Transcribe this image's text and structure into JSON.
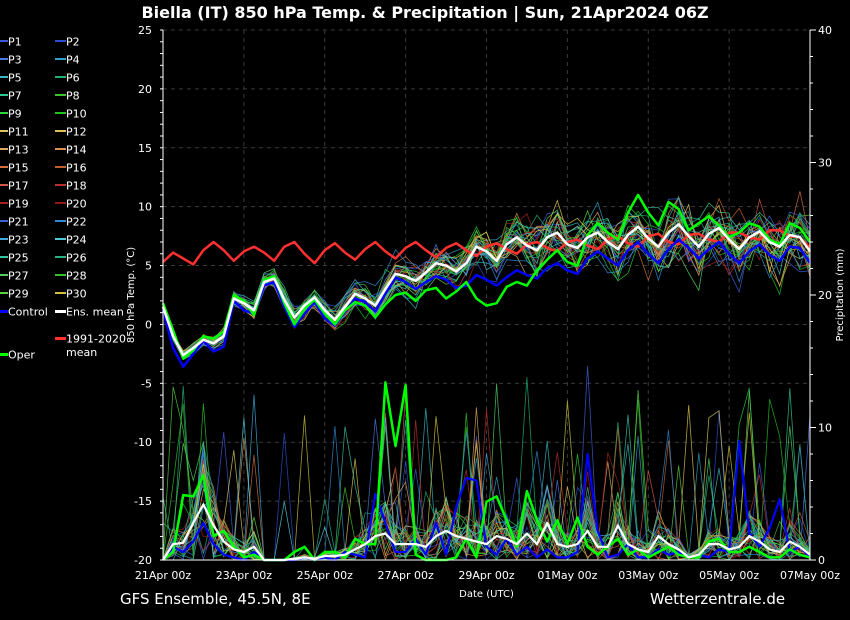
{
  "header": {
    "title": "Biella  (IT)  850 hPa Temp. & Precipitation | Sun, 21Apr2024 06Z"
  },
  "footer": {
    "left": "GFS Ensemble, 45.5N, 8E",
    "right": "Wetterzentrale.de"
  },
  "legend": {
    "items": [
      {
        "label": "P1",
        "color": "#3c5ad8"
      },
      {
        "label": "P2",
        "color": "#2a4fd0"
      },
      {
        "label": "P3",
        "color": "#4a78e0"
      },
      {
        "label": "P4",
        "color": "#2ea0c8"
      },
      {
        "label": "P5",
        "color": "#38b8c0"
      },
      {
        "label": "P6",
        "color": "#20b070"
      },
      {
        "label": "P7",
        "color": "#30c890"
      },
      {
        "label": "P8",
        "color": "#40c030"
      },
      {
        "label": "P9",
        "color": "#30d040"
      },
      {
        "label": "P10",
        "color": "#20c020"
      },
      {
        "label": "P11",
        "color": "#d8c860"
      },
      {
        "label": "P12",
        "color": "#e0c050"
      },
      {
        "label": "P13",
        "color": "#d8a860"
      },
      {
        "label": "P14",
        "color": "#d89050"
      },
      {
        "label": "P15",
        "color": "#d07040"
      },
      {
        "label": "P16",
        "color": "#c06030"
      },
      {
        "label": "P17",
        "color": "#d05848"
      },
      {
        "label": "P18",
        "color": "#b83030"
      },
      {
        "label": "P19",
        "color": "#a82020"
      },
      {
        "label": "P20",
        "color": "#901818"
      },
      {
        "label": "P21",
        "color": "#4060d8"
      },
      {
        "label": "P22",
        "color": "#3088d0"
      },
      {
        "label": "P23",
        "color": "#40a8d8"
      },
      {
        "label": "P24",
        "color": "#50c8d8"
      },
      {
        "label": "P25",
        "color": "#38c0a0"
      },
      {
        "label": "P26",
        "color": "#28b080"
      },
      {
        "label": "P27",
        "color": "#50d060"
      },
      {
        "label": "P28",
        "color": "#30c030"
      },
      {
        "label": "P29",
        "color": "#58d040"
      },
      {
        "label": "P30",
        "color": "#d0c040"
      }
    ],
    "control": {
      "label": "Control",
      "color": "#0000ff"
    },
    "ens_mean": {
      "label": "Ens. mean",
      "color": "#ffffff"
    },
    "oper": {
      "label": "Oper",
      "color": "#00ff00"
    },
    "climate": {
      "label_line1": "1991-2020",
      "label_line2": "mean",
      "color": "#ff3030"
    }
  },
  "chart_data": {
    "type": "line",
    "title": "Biella  (IT)  850 hPa Temp. & Precipitation | Sun, 21Apr2024 06Z",
    "xlabel": "Date (UTC)",
    "ylabel": "850 hPa Temp. (°C)",
    "y2label": "Precipitation (mm)",
    "ylim": [
      -20,
      25
    ],
    "y2lim": [
      0,
      40
    ],
    "yticks": [
      "25",
      "20",
      "15",
      "10",
      "5",
      "0",
      "-5",
      "-10",
      "-15",
      "-20"
    ],
    "y2ticks": [
      "40",
      "30",
      "20",
      "10",
      "0"
    ],
    "xticks": [
      "21Apr 00z",
      "23Apr 00z",
      "25Apr 00z",
      "27Apr 00z",
      "29Apr 00z",
      "01May 00z",
      "03May 00z",
      "05May 00z",
      "07May 00z"
    ],
    "x_hours": [
      0,
      6,
      12,
      18,
      24,
      30,
      36,
      42,
      48,
      54,
      60,
      66,
      72,
      78,
      84,
      90,
      96,
      102,
      108,
      114,
      120,
      126,
      132,
      138,
      144,
      150,
      156,
      162,
      168,
      174,
      180,
      186,
      192,
      198,
      204,
      210,
      216,
      222,
      228,
      234,
      240,
      246,
      252,
      258,
      264,
      270,
      276,
      282,
      288,
      294,
      300,
      306,
      312,
      318,
      324,
      330,
      336,
      342,
      348,
      354,
      360,
      366,
      372,
      378,
      384
    ],
    "grid": true,
    "series": [
      {
        "name": "1991-2020 mean",
        "axis": "temp",
        "color": "#ff3030",
        "values": [
          5.3,
          6.1,
          5.6,
          5.1,
          6.3,
          7.0,
          6.3,
          5.4,
          6.2,
          6.6,
          6.1,
          5.4,
          6.6,
          7.0,
          6.0,
          5.2,
          6.3,
          6.9,
          6.1,
          5.5,
          6.4,
          7.0,
          6.2,
          5.6,
          6.5,
          7.0,
          6.3,
          5.7,
          6.5,
          6.9,
          6.3,
          5.8,
          6.6,
          6.9,
          6.4,
          6.0,
          6.8,
          7.0,
          6.5,
          6.2,
          7.0,
          7.2,
          6.7,
          6.4,
          7.2,
          7.5,
          6.9,
          6.6,
          7.5,
          7.7,
          7.0,
          6.8,
          7.6,
          7.7,
          7.2,
          7.0,
          7.8,
          7.8,
          7.4,
          7.2,
          8.0,
          8.0,
          7.5,
          7.4,
          6.5
        ]
      },
      {
        "name": "Ens. mean",
        "axis": "temp",
        "color": "#ffffff",
        "values": [
          1.5,
          -1.0,
          -2.6,
          -2.0,
          -1.3,
          -1.6,
          -1.0,
          2.2,
          1.8,
          1.2,
          3.6,
          3.9,
          2.1,
          0.6,
          1.6,
          2.3,
          1.2,
          0.4,
          1.5,
          2.6,
          2.2,
          1.6,
          3.0,
          4.3,
          4.1,
          3.7,
          4.4,
          5.2,
          5.0,
          4.5,
          5.2,
          6.6,
          6.2,
          5.4,
          6.8,
          7.4,
          6.7,
          6.3,
          7.4,
          7.8,
          6.8,
          6.5,
          7.4,
          7.8,
          7.0,
          6.4,
          7.6,
          8.3,
          7.3,
          6.6,
          7.8,
          8.5,
          7.5,
          6.6,
          7.7,
          8.2,
          7.2,
          6.4,
          7.4,
          7.9,
          7.0,
          6.6,
          7.6,
          7.4,
          6.2
        ]
      },
      {
        "name": "Control",
        "axis": "temp",
        "color": "#0000ff",
        "values": [
          1.2,
          -2.0,
          -3.6,
          -2.5,
          -1.4,
          -2.3,
          -1.9,
          2.0,
          1.2,
          0.9,
          3.3,
          3.6,
          1.5,
          -0.2,
          0.9,
          1.9,
          0.5,
          -0.1,
          1.1,
          2.2,
          1.9,
          1.1,
          2.6,
          4.0,
          3.6,
          3.0,
          3.6,
          4.1,
          3.8,
          3.1,
          3.3,
          4.2,
          3.8,
          3.3,
          4.0,
          4.6,
          4.2,
          3.9,
          4.8,
          5.2,
          4.6,
          4.3,
          5.6,
          6.2,
          5.6,
          5.0,
          6.3,
          7.0,
          6.0,
          5.2,
          6.4,
          7.2,
          6.5,
          5.6,
          6.4,
          7.0,
          6.0,
          5.2,
          6.2,
          6.8,
          5.9,
          5.4,
          6.6,
          6.5,
          5.2
        ]
      },
      {
        "name": "Oper",
        "axis": "temp",
        "color": "#00ff00",
        "values": [
          1.8,
          -0.5,
          -2.9,
          -2.2,
          -1.0,
          -1.2,
          -0.6,
          2.5,
          2.0,
          0.8,
          3.8,
          4.1,
          1.8,
          0.0,
          1.3,
          2.1,
          0.9,
          0.0,
          1.2,
          1.9,
          1.6,
          0.6,
          1.7,
          2.5,
          2.7,
          2.0,
          2.9,
          3.1,
          2.2,
          2.8,
          3.6,
          2.2,
          1.6,
          1.8,
          3.2,
          3.6,
          3.3,
          4.6,
          5.5,
          6.3,
          5.3,
          5.0,
          7.6,
          8.6,
          7.8,
          7.2,
          9.5,
          11.0,
          9.5,
          8.4,
          10.4,
          9.8,
          8.0,
          8.6,
          9.2,
          8.4,
          7.4,
          7.8,
          8.6,
          8.3,
          7.2,
          6.8,
          8.6,
          8.2,
          7.0
        ]
      },
      {
        "name": "Ens. mean",
        "axis": "precip",
        "color": "#ffffff",
        "values": [
          0.0,
          1.2,
          1.3,
          2.8,
          4.2,
          2.6,
          1.4,
          0.8,
          0.6,
          1.0,
          0.0,
          0.0,
          0.0,
          0.1,
          0.2,
          0.1,
          0.3,
          0.3,
          0.4,
          0.8,
          1.2,
          1.8,
          2.0,
          1.2,
          1.2,
          1.2,
          1.0,
          1.8,
          2.2,
          1.8,
          1.6,
          1.4,
          1.2,
          1.8,
          1.6,
          1.2,
          2.0,
          1.2,
          2.8,
          1.2,
          1.0,
          1.2,
          2.2,
          1.0,
          1.0,
          2.6,
          1.2,
          0.8,
          0.6,
          1.8,
          1.2,
          0.8,
          0.2,
          0.4,
          1.2,
          1.2,
          0.8,
          1.0,
          1.8,
          1.4,
          0.8,
          0.6,
          1.4,
          1.0,
          0.4
        ]
      },
      {
        "name": "Oper",
        "axis": "precip",
        "color": "#00ff00",
        "values": [
          0.0,
          0.6,
          4.9,
          4.8,
          6.4,
          1.8,
          2.2,
          1.0,
          0.2,
          0.4,
          0.0,
          0.0,
          0.0,
          0.6,
          1.0,
          0.0,
          0.6,
          0.6,
          0.2,
          1.6,
          1.2,
          1.2,
          13.4,
          8.6,
          13.2,
          0.4,
          0.0,
          0.0,
          0.0,
          0.2,
          1.6,
          0.2,
          4.4,
          4.8,
          3.0,
          1.0,
          5.2,
          3.0,
          1.4,
          3.0,
          1.2,
          3.2,
          1.0,
          0.4,
          1.0,
          1.6,
          0.4,
          0.8,
          0.2,
          0.6,
          1.0,
          0.4,
          0.2,
          0.2,
          1.4,
          1.6,
          0.6,
          0.6,
          1.0,
          0.6,
          0.2,
          0.2,
          0.8,
          0.4,
          0.2
        ]
      },
      {
        "name": "Control",
        "axis": "precip",
        "color": "#0000ff",
        "values": [
          0.0,
          1.0,
          0.6,
          1.4,
          2.8,
          1.2,
          0.4,
          0.2,
          0.0,
          0.6,
          0.0,
          0.0,
          0.0,
          0.0,
          0.2,
          0.0,
          0.2,
          0.0,
          0.6,
          0.4,
          0.2,
          5.0,
          2.8,
          0.6,
          0.6,
          1.6,
          0.4,
          2.8,
          0.4,
          4.0,
          6.2,
          6.0,
          1.0,
          0.4,
          1.6,
          0.4,
          1.0,
          0.2,
          0.8,
          0.2,
          0.2,
          0.6,
          8.0,
          2.2,
          0.2,
          0.4,
          1.2,
          0.2,
          0.2,
          0.8,
          0.4,
          0.6,
          0.2,
          0.4,
          0.2,
          0.8,
          0.6,
          9.0,
          2.0,
          1.0,
          2.4,
          4.6,
          0.6,
          1.0,
          0.2
        ]
      }
    ]
  }
}
